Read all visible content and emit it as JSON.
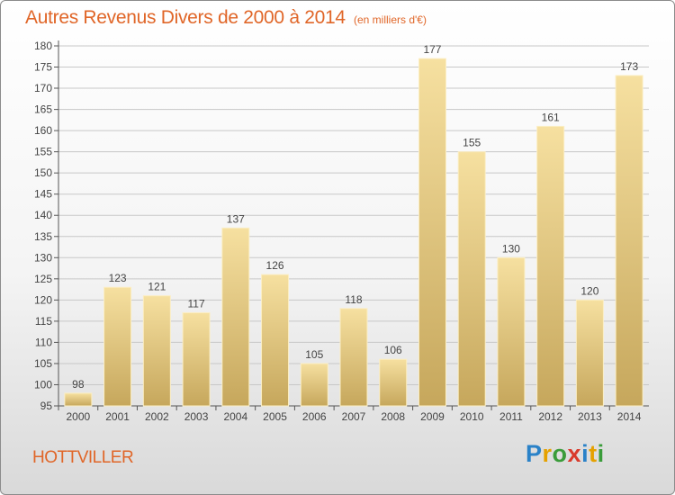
{
  "header": {
    "title": "Autres Revenus Divers de 2000 à 2014",
    "subtitle": "(en milliers d'€)"
  },
  "footer": {
    "place": "HOTTVILLER",
    "logo": {
      "letters": [
        "P",
        "r",
        "o",
        "x",
        "i",
        "t",
        "i"
      ],
      "colors": [
        "#2a82c8",
        "#e5a100",
        "#3a9c3a",
        "#d93a2b",
        "#2a82c8",
        "#e5a100",
        "#3a9c3a"
      ]
    }
  },
  "chart_data": {
    "type": "bar",
    "categories": [
      "2000",
      "2001",
      "2002",
      "2003",
      "2004",
      "2005",
      "2006",
      "2007",
      "2008",
      "2009",
      "2010",
      "2011",
      "2012",
      "2013",
      "2014"
    ],
    "values": [
      98,
      123,
      121,
      117,
      137,
      126,
      105,
      118,
      106,
      177,
      155,
      130,
      161,
      120,
      173
    ],
    "ylim": [
      95,
      180
    ],
    "yticks": [
      95,
      100,
      105,
      110,
      115,
      120,
      125,
      130,
      135,
      140,
      145,
      150,
      155,
      160,
      165,
      170,
      175,
      180
    ],
    "grid": true,
    "colors": {
      "bar": "#e2c578",
      "bar_light": "#f4dc96",
      "bar_dark": "#c9a95a",
      "grid": "#c8c8c8",
      "title": "#e06628"
    }
  }
}
